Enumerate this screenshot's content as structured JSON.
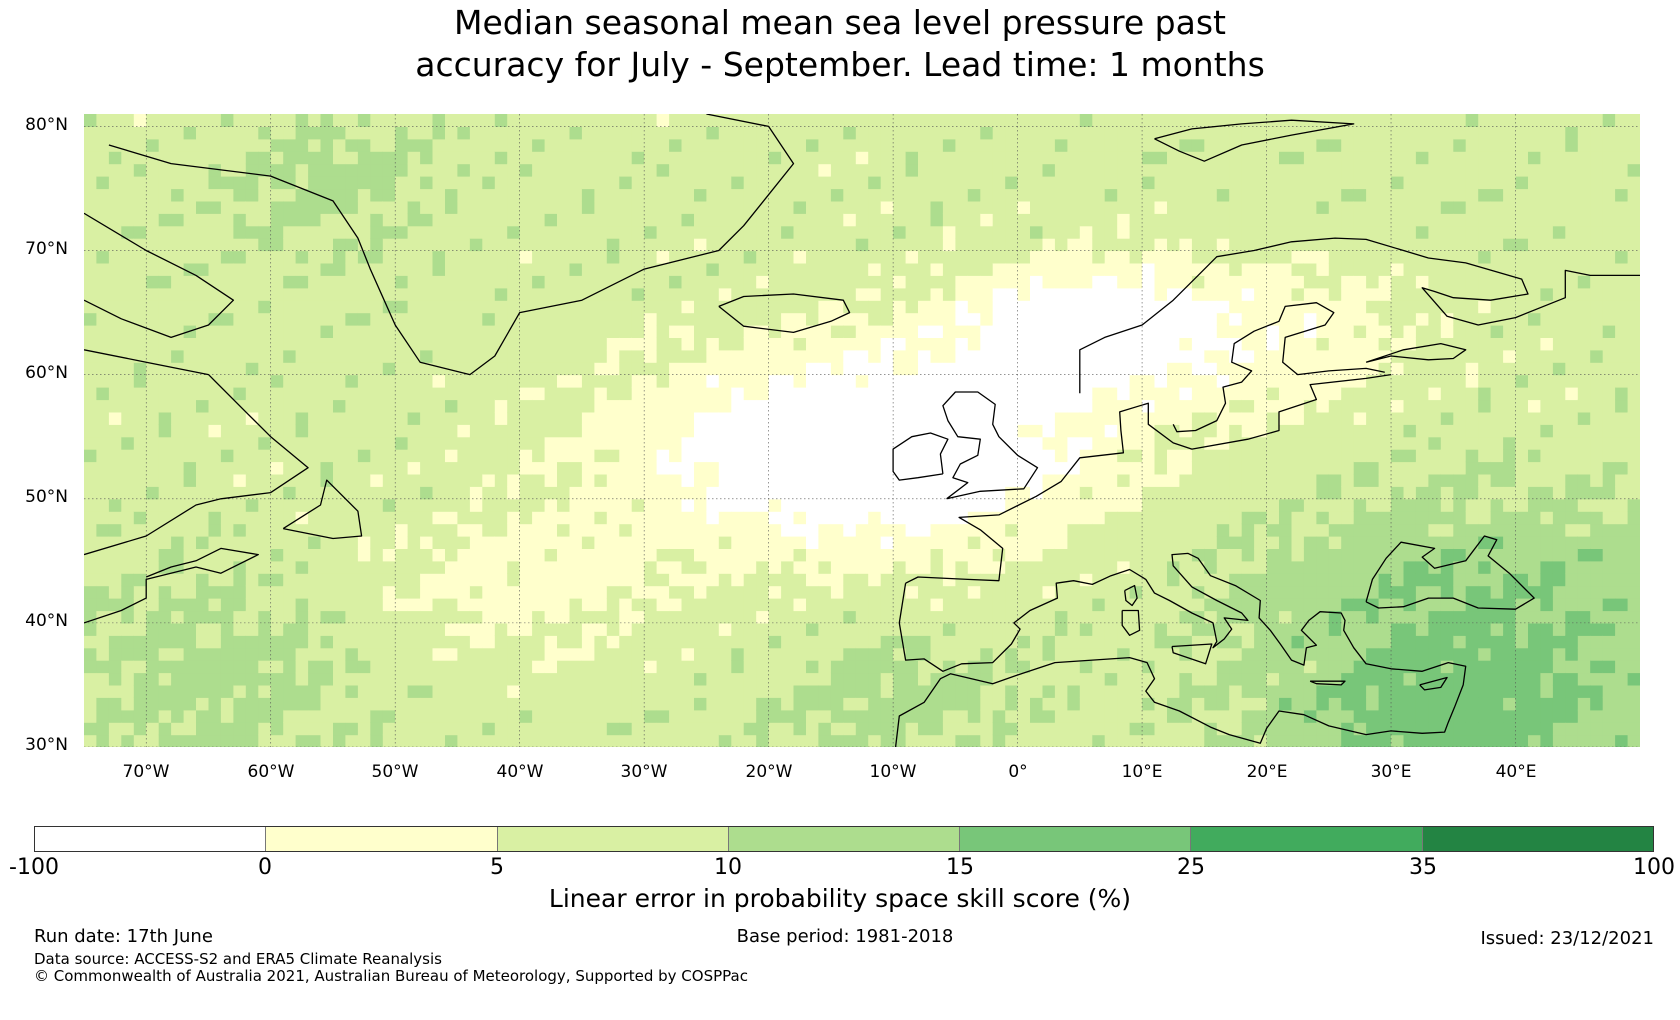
{
  "title": {
    "line1": "Median seasonal mean sea level pressure past",
    "line2": "accuracy for July - September. Lead time: 1 months"
  },
  "map": {
    "lon_range": [
      -75,
      50
    ],
    "lat_range": [
      30,
      81
    ],
    "lat_ticks": [
      "80°N",
      "70°N",
      "60°N",
      "50°N",
      "40°N",
      "30°N"
    ],
    "lon_ticks": [
      "70°W",
      "60°W",
      "50°W",
      "40°W",
      "30°W",
      "20°W",
      "10°W",
      "0°",
      "10°E",
      "20°E",
      "30°E",
      "40°E"
    ],
    "gridlines": true,
    "projection": "equirectangular",
    "features": [
      "Greenland",
      "Iceland",
      "Scandinavia",
      "British Isles",
      "Europe",
      "Mediterranean Sea",
      "Black Sea",
      "North Africa",
      "Canada"
    ]
  },
  "colorbar": {
    "label": "Linear error in probability space skill score (%)",
    "tick_labels": [
      "-100",
      "0",
      "5",
      "10",
      "15",
      "25",
      "35",
      "100"
    ],
    "colors": [
      "#ffffff",
      "#ffffcc",
      "#d9f0a3",
      "#addd8e",
      "#78c679",
      "#41ab5d",
      "#238443"
    ]
  },
  "footer": {
    "run_date": "Run date: 17th June",
    "base_period": "Base period: 1981-2018",
    "issued": "Issued: 23/12/2021",
    "data_source": "Data source: ACCESS-S2 and ERA5 Climate Reanalysis",
    "copyright": "© Commonwealth of Australia 2021, Australian Bureau of Meteorology, Supported by COSPPac"
  }
}
